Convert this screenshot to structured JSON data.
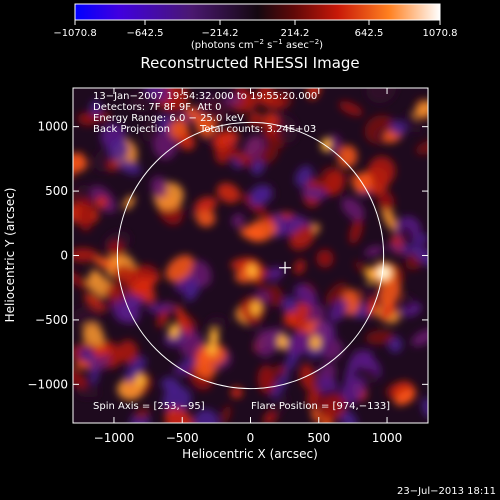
{
  "chart_data": {
    "type": "heatmap",
    "title": "Reconstructed RHESSI Image",
    "xlabel": "Heliocentric X (arcsec)",
    "ylabel": "Heliocentric Y (arcsec)",
    "xlim": [
      -1300,
      1300
    ],
    "ylim": [
      -1300,
      1300
    ],
    "x_ticks": [
      -1000,
      -500,
      0,
      500,
      1000
    ],
    "y_ticks": [
      -1000,
      -500,
      0,
      500,
      1000
    ],
    "x_tick_labels": [
      "−1000",
      "−500",
      "0",
      "500",
      "1000"
    ],
    "y_tick_labels": [
      "−1000",
      "−500",
      "0",
      "500",
      "1000"
    ],
    "colorbar": {
      "min": -1070.8,
      "max": 1070.8,
      "tick_labels": [
        "−1070.8",
        "−642.5",
        "−214.2",
        "214.2",
        "642.5",
        "1070.8"
      ],
      "unit_label": "(photons cm",
      "unit_exp1": "−2",
      "unit_mid": " s",
      "unit_exp2": "−1",
      "unit_mid2": " asec",
      "unit_exp3": "−2",
      "unit_end": ")",
      "colors": [
        "#0000ff",
        "#5a00d8",
        "#4a1a6a",
        "#1a0a10",
        "#5a0a0a",
        "#c01808",
        "#ff5010",
        "#ffb040",
        "#ffffff"
      ]
    },
    "annotations": {
      "time_range": "13−Jan−2007 19:54:32.000 to 19:55:20.000",
      "detectors": "Detectors: 7F 8F 9F, Att 0",
      "energy_range": "Energy Range: 6.0 − 25.0 keV",
      "method": "Back Projection",
      "total_counts": "Total counts: 3.24E+03",
      "spin_axis": "Spin Axis = [253,−95]",
      "flare_position": "Flare Position = [974,−133]"
    },
    "solar_limb": {
      "center": [
        0,
        0
      ],
      "radius": 975
    },
    "spin_axis_marker": [
      253,
      -95
    ],
    "flare_source": {
      "x": 974,
      "y": -133,
      "value": 1070.8
    },
    "grid": false,
    "footer_date": "23−Jul−2013 18:11"
  }
}
